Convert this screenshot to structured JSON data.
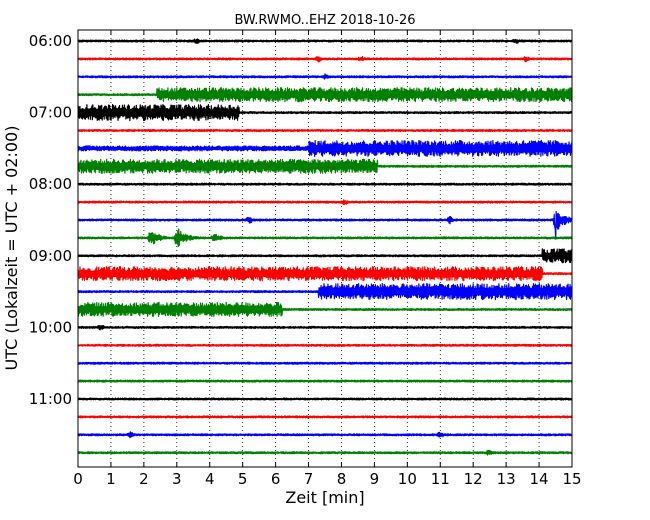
{
  "chart_data": {
    "type": "line",
    "title": "BW.RWMO..EHZ 2018-10-26",
    "xlabel": "Zeit  [min]",
    "ylabel": "UTC (Lokalzeit = UTC + 02:00)",
    "xlim": [
      0,
      15
    ],
    "x_ticks": [
      0,
      1,
      2,
      3,
      4,
      5,
      6,
      7,
      8,
      9,
      10,
      11,
      12,
      13,
      14,
      15
    ],
    "x_tick_labels": [
      "0",
      "1",
      "2",
      "3",
      "4",
      "5",
      "6",
      "7",
      "8",
      "9",
      "10",
      "11",
      "12",
      "13",
      "14",
      "15"
    ],
    "y_tick_labels": [
      "06:00",
      "07:00",
      "08:00",
      "09:00",
      "10:00",
      "11:00"
    ],
    "y_tick_rows": [
      0,
      4,
      8,
      12,
      16,
      20
    ],
    "row_minutes": 15,
    "grid": "dotted vertical lines at each minute",
    "colors": [
      "#000000",
      "#ff0000",
      "#0000ff",
      "#008000"
    ],
    "rows": [
      {
        "start": "06:00",
        "color": "#000000",
        "events": [
          {
            "type": "blip",
            "t": 3.6,
            "a": 2
          },
          {
            "type": "blip",
            "t": 13.3,
            "a": 2
          }
        ]
      },
      {
        "start": "06:15",
        "color": "#ff0000",
        "events": [
          {
            "type": "blip",
            "t": 7.3,
            "a": 2.5
          },
          {
            "type": "blip",
            "t": 8.6,
            "a": 2
          },
          {
            "type": "blip",
            "t": 13.6,
            "a": 2
          }
        ]
      },
      {
        "start": "06:30",
        "color": "#0000ff",
        "events": [
          {
            "type": "blip",
            "t": 7.5,
            "a": 2
          }
        ]
      },
      {
        "start": "06:45",
        "color": "#008000",
        "events": [
          {
            "type": "band",
            "from": 2.4,
            "to": 15,
            "a": 7
          }
        ]
      },
      {
        "start": "07:00",
        "color": "#000000",
        "events": [
          {
            "type": "band",
            "from": 0,
            "to": 4.9,
            "a": 8
          }
        ]
      },
      {
        "start": "07:15",
        "color": "#ff0000",
        "events": []
      },
      {
        "start": "07:30",
        "color": "#0000ff",
        "events": [
          {
            "type": "band",
            "from": 0,
            "to": 7.0,
            "a": 2.5
          },
          {
            "type": "band",
            "from": 7.0,
            "to": 15,
            "a": 8
          }
        ]
      },
      {
        "start": "07:45",
        "color": "#008000",
        "events": [
          {
            "type": "band",
            "from": 0,
            "to": 9.1,
            "a": 7
          }
        ]
      },
      {
        "start": "08:00",
        "color": "#000000",
        "events": []
      },
      {
        "start": "08:15",
        "color": "#ff0000",
        "events": [
          {
            "type": "blip",
            "t": 8.1,
            "a": 2
          }
        ]
      },
      {
        "start": "08:30",
        "color": "#0000ff",
        "events": [
          {
            "type": "blip",
            "t": 5.2,
            "a": 3
          },
          {
            "type": "blip",
            "t": 11.3,
            "a": 3
          },
          {
            "type": "quake",
            "t": 14.5,
            "a": 14,
            "spike": 30
          }
        ]
      },
      {
        "start": "08:45",
        "color": "#008000",
        "events": [
          {
            "type": "quake",
            "t": 2.2,
            "a": 10
          },
          {
            "type": "quake",
            "t": 3.0,
            "a": 12
          },
          {
            "type": "quake",
            "t": 4.1,
            "a": 5
          }
        ]
      },
      {
        "start": "09:00",
        "color": "#000000",
        "events": [
          {
            "type": "band",
            "from": 14.1,
            "to": 15,
            "a": 7
          }
        ]
      },
      {
        "start": "09:15",
        "color": "#ff0000",
        "events": [
          {
            "type": "band",
            "from": 0,
            "to": 14.1,
            "a": 7
          }
        ]
      },
      {
        "start": "09:30",
        "color": "#0000ff",
        "events": [
          {
            "type": "band",
            "from": 7.3,
            "to": 15,
            "a": 8
          }
        ]
      },
      {
        "start": "09:45",
        "color": "#008000",
        "events": [
          {
            "type": "band",
            "from": 0,
            "to": 6.2,
            "a": 7
          }
        ]
      },
      {
        "start": "10:00",
        "color": "#000000",
        "events": [
          {
            "type": "blip",
            "t": 0.7,
            "a": 3
          }
        ]
      },
      {
        "start": "10:15",
        "color": "#ff0000",
        "events": []
      },
      {
        "start": "10:30",
        "color": "#0000ff",
        "events": []
      },
      {
        "start": "10:45",
        "color": "#008000",
        "events": []
      },
      {
        "start": "11:00",
        "color": "#000000",
        "events": []
      },
      {
        "start": "11:15",
        "color": "#ff0000",
        "events": []
      },
      {
        "start": "11:30",
        "color": "#0000ff",
        "events": [
          {
            "type": "blip",
            "t": 1.6,
            "a": 3
          },
          {
            "type": "blip",
            "t": 11.0,
            "a": 3
          }
        ]
      },
      {
        "start": "11:45",
        "color": "#008000",
        "events": [
          {
            "type": "blip",
            "t": 12.5,
            "a": 3
          }
        ]
      }
    ]
  }
}
